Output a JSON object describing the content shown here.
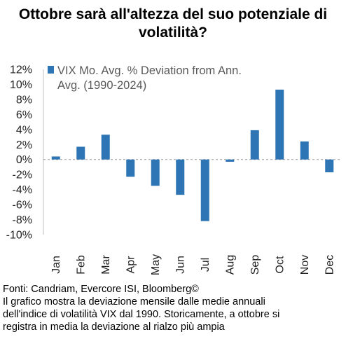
{
  "title_lines": [
    "Ottobre sarà all'altezza del suo potenziale di",
    "volatilità?"
  ],
  "chart_data": {
    "type": "bar",
    "categories": [
      "Jan",
      "Feb",
      "Mar",
      "Apr",
      "May",
      "Jun",
      "Jul",
      "Aug",
      "Sep",
      "Oct",
      "Nov",
      "Dec"
    ],
    "series": [
      {
        "name": "VIX Mo. Avg. % Deviation from Ann. Avg. (1990-2024)",
        "values": [
          0.4,
          1.7,
          3.3,
          -2.3,
          -3.5,
          -4.7,
          -8.2,
          -0.3,
          3.9,
          9.3,
          2.4,
          -1.7
        ]
      }
    ],
    "legend_lines": [
      "VIX Mo. Avg. % Deviation from Ann.",
      "Avg. (1990-2024)"
    ],
    "y_ticks": [
      "12%",
      "10%",
      "8%",
      "6%",
      "4%",
      "2%",
      "0%",
      "-2%",
      "-4%",
      "-6%",
      "-8%",
      "-10%"
    ],
    "ylim": [
      -10,
      12
    ],
    "bar_color": "#2E75B6",
    "legend_position": "top-left",
    "grid": false
  },
  "caption_lines": [
    "Fonti: Candriam, Evercore ISI, Bloomberg©",
    "Il grafico mostra la deviazione mensile dalle medie annuali",
    "dell'indice di volatilità VIX dal 1990. Storicamente, a ottobre si",
    "registra in media la deviazione al rialzo più ampia"
  ]
}
